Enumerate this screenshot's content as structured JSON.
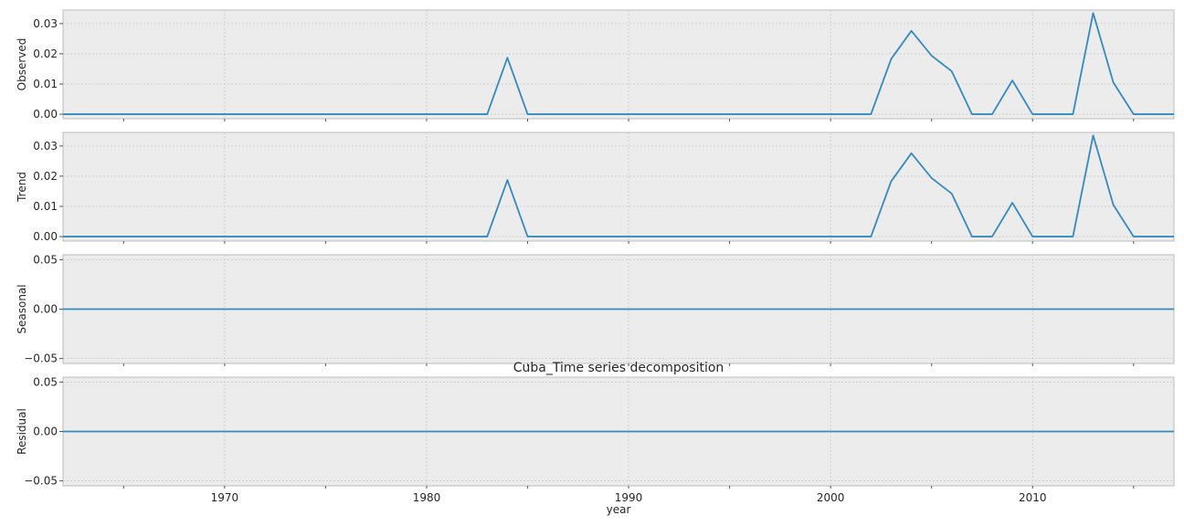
{
  "chart_data": {
    "type": "line",
    "title": "Cuba_Time series decomposition",
    "xlabel": "year",
    "xlim": [
      1962,
      2017
    ],
    "x_ticks": [
      1970,
      1980,
      1990,
      2000,
      2010
    ],
    "x_minor_ticks": [
      1965,
      1975,
      1985,
      1995,
      2005,
      2015
    ],
    "grid": true,
    "color": "#348abd",
    "panels": [
      {
        "ylabel": "Observed",
        "ylim": [
          -0.0015,
          0.0345
        ],
        "yticks": [
          0.0,
          0.01,
          0.02,
          0.03
        ],
        "ytick_labels": [
          "0.00",
          "0.01",
          "0.02",
          "0.03"
        ],
        "points": [
          [
            1962,
            0
          ],
          [
            1983,
            0
          ],
          [
            1984,
            0.0187
          ],
          [
            1985,
            0
          ],
          [
            2002,
            0
          ],
          [
            2003,
            0.0183
          ],
          [
            2004,
            0.0276
          ],
          [
            2005,
            0.0194
          ],
          [
            2006,
            0.0142
          ],
          [
            2007,
            0
          ],
          [
            2008,
            0
          ],
          [
            2009,
            0.0112
          ],
          [
            2010,
            0
          ],
          [
            2012,
            0
          ],
          [
            2013,
            0.0335
          ],
          [
            2014,
            0.0105
          ],
          [
            2015,
            0
          ],
          [
            2017,
            0
          ]
        ]
      },
      {
        "ylabel": "Trend",
        "ylim": [
          -0.0015,
          0.0345
        ],
        "yticks": [
          0.0,
          0.01,
          0.02,
          0.03
        ],
        "ytick_labels": [
          "0.00",
          "0.01",
          "0.02",
          "0.03"
        ],
        "points": [
          [
            1962,
            0
          ],
          [
            1983,
            0
          ],
          [
            1984,
            0.0187
          ],
          [
            1985,
            0
          ],
          [
            2002,
            0
          ],
          [
            2003,
            0.0183
          ],
          [
            2004,
            0.0276
          ],
          [
            2005,
            0.0194
          ],
          [
            2006,
            0.0142
          ],
          [
            2007,
            0
          ],
          [
            2008,
            0
          ],
          [
            2009,
            0.0112
          ],
          [
            2010,
            0
          ],
          [
            2012,
            0
          ],
          [
            2013,
            0.0335
          ],
          [
            2014,
            0.0105
          ],
          [
            2015,
            0
          ],
          [
            2017,
            0
          ]
        ]
      },
      {
        "ylabel": "Seasonal",
        "ylim": [
          -0.055,
          0.055
        ],
        "yticks": [
          -0.05,
          0.0,
          0.05
        ],
        "ytick_labels": [
          "−0.05",
          "0.00",
          "0.05"
        ],
        "points": [
          [
            1962,
            0
          ],
          [
            2017,
            0
          ]
        ]
      },
      {
        "ylabel": "Residual",
        "ylim": [
          -0.055,
          0.055
        ],
        "yticks": [
          -0.05,
          0.0,
          0.05
        ],
        "ytick_labels": [
          "−0.05",
          "0.00",
          "0.05"
        ],
        "points": [
          [
            1962,
            0
          ],
          [
            2017,
            0
          ]
        ]
      }
    ]
  }
}
